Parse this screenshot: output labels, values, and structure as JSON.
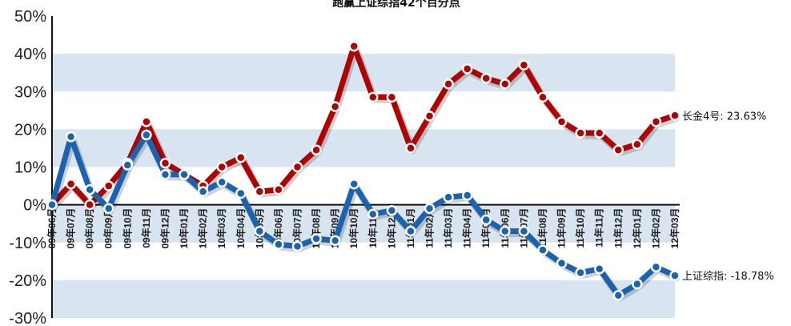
{
  "chart_data": {
    "type": "line",
    "title": "跑赢上证综指42个百分点",
    "xlabel": "",
    "ylabel": "",
    "ylim": [
      -30,
      50
    ],
    "yticks": [
      "-30%",
      "-20%",
      "-10%",
      "0%",
      "10%",
      "20%",
      "30%",
      "40%",
      "50%"
    ],
    "grid": "alternating horizontal bands",
    "categories": [
      "09年06月",
      "09年07月",
      "09年08月",
      "09年09月",
      "09年10月",
      "09年11月",
      "09年12月",
      "10年01月",
      "10年02月",
      "10年03月",
      "10年04月",
      "10年05月",
      "10年06月",
      "10年07月",
      "10年08月",
      "10年09月",
      "10年10月",
      "10年11月",
      "10年12月",
      "11年01月",
      "11年02月",
      "11年03月",
      "11年04月",
      "11年05月",
      "11年06月",
      "11年07月",
      "11年08月",
      "11年09月",
      "11年10月",
      "11年11月",
      "11年12月",
      "12年01月",
      "12年02月",
      "12年03月"
    ],
    "series": [
      {
        "name": "长金4号",
        "color": "#b00000",
        "end_label": "长金4号: 23.63%",
        "values": [
          0,
          5.5,
          0,
          5,
          11,
          22,
          11,
          8,
          5,
          10,
          12.5,
          3.5,
          4,
          10,
          14.5,
          26,
          42,
          28.5,
          28.5,
          15,
          23.5,
          32,
          36,
          33.5,
          32,
          37,
          28.5,
          22,
          19,
          19,
          14.5,
          16,
          22,
          23.63
        ]
      },
      {
        "name": "上证综指",
        "color": "#1a63b0",
        "end_label": "上证综指: -18.78%",
        "values": [
          0,
          18,
          4,
          -1,
          10.5,
          18.5,
          8,
          8,
          3.5,
          6,
          3,
          -7,
          -10.5,
          -11,
          -9,
          -9.5,
          5.5,
          -2.5,
          -1.5,
          -7,
          -1,
          2,
          2.5,
          -4,
          -7,
          -7,
          -12,
          -15.5,
          -18,
          -17,
          -24,
          -21,
          -16.5,
          -18.78
        ]
      }
    ]
  }
}
